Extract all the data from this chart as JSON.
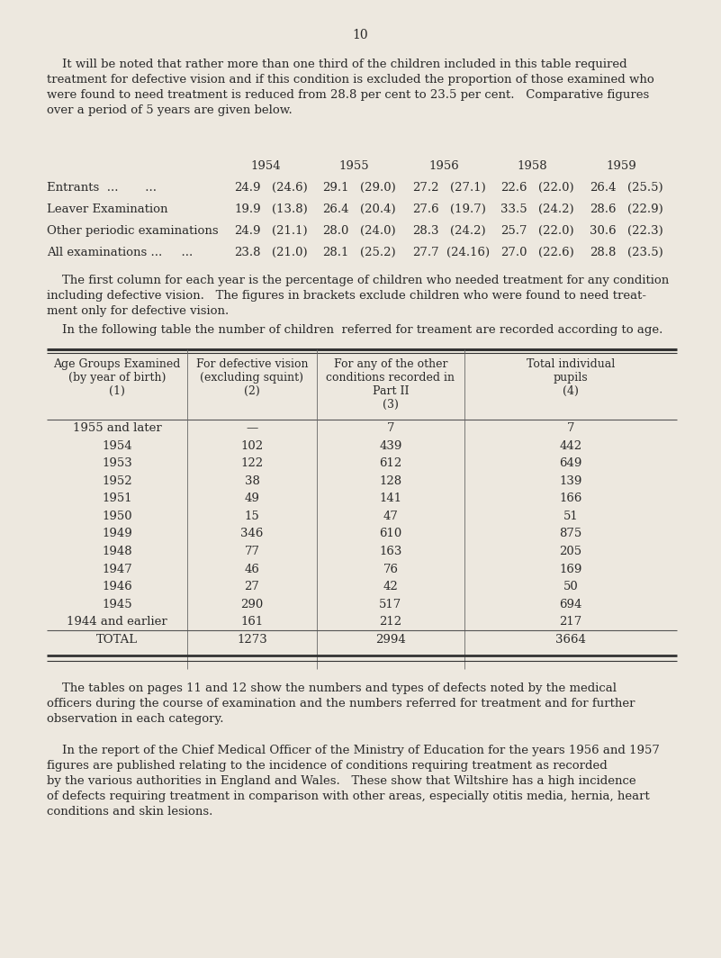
{
  "page_number": "10",
  "bg_color": "#ede8df",
  "text_color": "#2a2a2a",
  "para1_indent": "    It will be noted that rather more than one third of the children included in this table required",
  "para1_rest": [
    "treatment for defective vision and if this condition is excluded the proportion of those examined who",
    "were found to need treatment is reduced from 28.8 per cent to 23.5 per cent.   Comparative figures",
    "over a period of 5 years are given below."
  ],
  "years": [
    "1954",
    "1955",
    "1956",
    "1958",
    "1959"
  ],
  "stat_rows": [
    {
      "label": "Entrants  ...       ...  ",
      "label_dots": "... ",
      "v1": "24.9",
      "b1": "(24.6)",
      "v2": "29.1",
      "b2": "(29.0)",
      "v3": "27.2",
      "b3": "(27.1)",
      "v4": "22.6",
      "b4": "(22.0)",
      "v5": "26.4",
      "b5": "(25.5)"
    },
    {
      "label": "Leaver Examination",
      "label_dots": "... ",
      "v1": "19.9",
      "b1": "(13.8)",
      "v2": "26.4",
      "b2": "(20.4)",
      "v3": "27.6",
      "b3": "(19.7)",
      "v4": "33.5",
      "b4": "(24.2)",
      "v5": "28.6",
      "b5": "(22.9)"
    },
    {
      "label": "Other periodic examinations",
      "label_dots": "",
      "v1": "24.9",
      "b1": "(21.1)",
      "v2": "28.0",
      "b2": "(24.0)",
      "v3": "28.3",
      "b3": "(24.2)",
      "v4": "25.7",
      "b4": "(22.0)",
      "v5": "30.6",
      "b5": "(22.3)"
    },
    {
      "label": "All examinations ...     ...",
      "label_dots": "",
      "v1": "23.8",
      "b1": "(21.0)",
      "v2": "28.1",
      "b2": "(25.2)",
      "v3": "27.7",
      "b3": "(24.16)",
      "v4": "27.0",
      "b4": "(22.6)",
      "v5": "28.8",
      "b5": "(23.5)"
    }
  ],
  "para2_indent": "    The first column for each year is the percentage of children who needed treatment for any condition",
  "para2_rest": [
    "including defective vision.   The figures in brackets exclude children who were found to need treat-",
    "ment only for defective vision."
  ],
  "para3": "    In the following table the number of children  referred for treament are recorded according to age.",
  "table2_col1_header": [
    "Age Groups Examined",
    "(by year of birth)",
    "(1)"
  ],
  "table2_col2_header": [
    "For defective vision",
    "(excluding squint)",
    "(2)"
  ],
  "table2_col3_header": [
    "For any of the other",
    "conditions recorded in",
    "Part II",
    "(3)"
  ],
  "table2_col4_header": [
    "Total individual",
    "pupils",
    "(4)"
  ],
  "table2_rows": [
    [
      "1955 and later",
      "—",
      "7",
      "7"
    ],
    [
      "1954",
      "102",
      "439",
      "442"
    ],
    [
      "1953",
      "122",
      "612",
      "649"
    ],
    [
      "1952",
      "38",
      "128",
      "139"
    ],
    [
      "1951",
      "49",
      "141",
      "166"
    ],
    [
      "1950",
      "15",
      "47",
      "51"
    ],
    [
      "1949",
      "346",
      "610",
      "875"
    ],
    [
      "1948",
      "77",
      "163",
      "205"
    ],
    [
      "1947",
      "46",
      "76",
      "169"
    ],
    [
      "1946",
      "27",
      "42",
      "50"
    ],
    [
      "1945",
      "290",
      "517",
      "694"
    ],
    [
      "1944 and earlier",
      "161",
      "212",
      "217"
    ],
    [
      "TOTAL",
      "1273",
      "2994",
      "3664"
    ]
  ],
  "para4_indent": "    The tables on pages 11 and 12 show the numbers and types of defects noted by the medical",
  "para4_rest": [
    "officers during the course of examination and the numbers referred for treatment and for further",
    "observation in each category."
  ],
  "para5_indent": "    In the report of the Chief Medical Officer of the Ministry of Education for the years 1956 and 1957",
  "para5_rest": [
    "figures are published relating to the incidence of conditions requiring treatment as recorded",
    "by the various authorities in England and Wales.   These show that Wiltshire has a high incidence",
    "of defects requiring treatment in comparison with other areas, especially otitis media, hernia, heart",
    "conditions and skin lesions."
  ]
}
